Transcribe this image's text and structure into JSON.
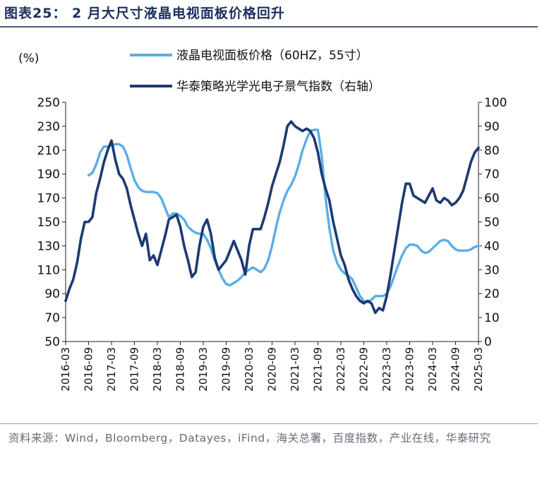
{
  "header": {
    "title": "图表25：  2 月大尺寸液晶电视面板价格回升"
  },
  "footer": {
    "source": "资料来源：Wind，Bloomberg，Datayes，iFind，海关总署，百度指数，产业在线，华泰研究"
  },
  "chart_data": {
    "type": "line",
    "ylabel_left": "(%)",
    "ylim_left": [
      50,
      250
    ],
    "yticks_left": [
      50,
      70,
      90,
      110,
      130,
      150,
      170,
      190,
      210,
      230,
      250
    ],
    "ylim_right": [
      0,
      100
    ],
    "yticks_right": [
      0,
      10,
      20,
      30,
      40,
      50,
      60,
      70,
      80,
      90,
      100
    ],
    "xlim": [
      "2016-03",
      "2025-03"
    ],
    "xticks": [
      "2016-03",
      "2016-09",
      "2017-03",
      "2017-09",
      "2018-03",
      "2018-09",
      "2019-03",
      "2019-09",
      "2020-03",
      "2020-09",
      "2021-03",
      "2021-09",
      "2022-03",
      "2022-09",
      "2023-03",
      "2023-09",
      "2024-03",
      "2024-09",
      "2025-03"
    ],
    "legend_position": "top-center",
    "series": [
      {
        "name": "液晶电视面板价格（60HZ，55寸）",
        "axis": "left",
        "color": "#5aaee6",
        "points": [
          [
            "2016-09",
            189
          ],
          [
            "2016-10",
            191
          ],
          [
            "2016-11",
            198
          ],
          [
            "2016-12",
            208
          ],
          [
            "2017-01",
            213
          ],
          [
            "2017-02",
            213
          ],
          [
            "2017-03",
            214
          ],
          [
            "2017-04",
            215
          ],
          [
            "2017-05",
            215
          ],
          [
            "2017-06",
            213
          ],
          [
            "2017-07",
            206
          ],
          [
            "2017-08",
            195
          ],
          [
            "2017-09",
            185
          ],
          [
            "2017-10",
            179
          ],
          [
            "2017-11",
            176
          ],
          [
            "2017-12",
            175
          ],
          [
            "2018-01",
            175
          ],
          [
            "2018-02",
            175
          ],
          [
            "2018-03",
            174
          ],
          [
            "2018-04",
            170
          ],
          [
            "2018-05",
            162
          ],
          [
            "2018-06",
            154
          ],
          [
            "2018-07",
            157
          ],
          [
            "2018-08",
            157
          ],
          [
            "2018-09",
            155
          ],
          [
            "2018-10",
            152
          ],
          [
            "2018-11",
            146
          ],
          [
            "2018-12",
            143
          ],
          [
            "2019-01",
            141
          ],
          [
            "2019-02",
            140
          ],
          [
            "2019-03",
            140
          ],
          [
            "2019-04",
            135
          ],
          [
            "2019-05",
            128
          ],
          [
            "2019-06",
            118
          ],
          [
            "2019-07",
            110
          ],
          [
            "2019-08",
            103
          ],
          [
            "2019-09",
            98
          ],
          [
            "2019-10",
            97
          ],
          [
            "2019-11",
            99
          ],
          [
            "2019-12",
            101
          ],
          [
            "2020-01",
            104
          ],
          [
            "2020-02",
            108
          ],
          [
            "2020-03",
            110
          ],
          [
            "2020-04",
            112
          ],
          [
            "2020-05",
            110
          ],
          [
            "2020-06",
            108
          ],
          [
            "2020-07",
            111
          ],
          [
            "2020-08",
            118
          ],
          [
            "2020-09",
            130
          ],
          [
            "2020-10",
            145
          ],
          [
            "2020-11",
            158
          ],
          [
            "2020-12",
            168
          ],
          [
            "2021-01",
            176
          ],
          [
            "2021-02",
            181
          ],
          [
            "2021-03",
            188
          ],
          [
            "2021-04",
            198
          ],
          [
            "2021-05",
            210
          ],
          [
            "2021-06",
            219
          ],
          [
            "2021-07",
            226
          ],
          [
            "2021-08",
            227
          ],
          [
            "2021-09",
            227
          ],
          [
            "2021-10",
            205
          ],
          [
            "2021-11",
            170
          ],
          [
            "2021-12",
            145
          ],
          [
            "2022-01",
            126
          ],
          [
            "2022-02",
            116
          ],
          [
            "2022-03",
            110
          ],
          [
            "2022-04",
            107
          ],
          [
            "2022-05",
            105
          ],
          [
            "2022-06",
            102
          ],
          [
            "2022-07",
            95
          ],
          [
            "2022-08",
            88
          ],
          [
            "2022-09",
            84
          ],
          [
            "2022-10",
            83
          ],
          [
            "2022-11",
            85
          ],
          [
            "2022-12",
            88
          ],
          [
            "2023-01",
            88
          ],
          [
            "2023-02",
            88
          ],
          [
            "2023-03",
            90
          ],
          [
            "2023-04",
            96
          ],
          [
            "2023-05",
            105
          ],
          [
            "2023-06",
            114
          ],
          [
            "2023-07",
            122
          ],
          [
            "2023-08",
            128
          ],
          [
            "2023-09",
            131
          ],
          [
            "2023-10",
            131
          ],
          [
            "2023-11",
            130
          ],
          [
            "2023-12",
            126
          ],
          [
            "2024-01",
            124
          ],
          [
            "2024-02",
            125
          ],
          [
            "2024-03",
            128
          ],
          [
            "2024-04",
            131
          ],
          [
            "2024-05",
            134
          ],
          [
            "2024-06",
            135
          ],
          [
            "2024-07",
            134
          ],
          [
            "2024-08",
            130
          ],
          [
            "2024-09",
            127
          ],
          [
            "2024-10",
            126
          ],
          [
            "2024-11",
            126
          ],
          [
            "2024-12",
            126
          ],
          [
            "2025-01",
            127
          ],
          [
            "2025-02",
            129
          ],
          [
            "2025-03",
            130
          ]
        ]
      },
      {
        "name": "华泰策略光学光电子景气指数（右轴）",
        "axis": "right",
        "color": "#1c3a72",
        "points": [
          [
            "2016-03",
            17
          ],
          [
            "2016-04",
            22
          ],
          [
            "2016-05",
            26
          ],
          [
            "2016-06",
            33
          ],
          [
            "2016-07",
            43
          ],
          [
            "2016-08",
            50
          ],
          [
            "2016-09",
            50
          ],
          [
            "2016-10",
            52
          ],
          [
            "2016-11",
            62
          ],
          [
            "2016-12",
            68
          ],
          [
            "2017-01",
            75
          ],
          [
            "2017-02",
            80
          ],
          [
            "2017-03",
            84
          ],
          [
            "2017-04",
            76
          ],
          [
            "2017-05",
            70
          ],
          [
            "2017-06",
            68
          ],
          [
            "2017-07",
            64
          ],
          [
            "2017-08",
            57
          ],
          [
            "2017-09",
            51
          ],
          [
            "2017-10",
            45
          ],
          [
            "2017-11",
            40
          ],
          [
            "2017-12",
            45
          ],
          [
            "2018-01",
            34
          ],
          [
            "2018-02",
            36
          ],
          [
            "2018-03",
            32
          ],
          [
            "2018-04",
            38
          ],
          [
            "2018-05",
            44
          ],
          [
            "2018-06",
            51
          ],
          [
            "2018-07",
            52
          ],
          [
            "2018-08",
            53
          ],
          [
            "2018-09",
            48
          ],
          [
            "2018-10",
            40
          ],
          [
            "2018-11",
            34
          ],
          [
            "2018-12",
            27
          ],
          [
            "2019-01",
            29
          ],
          [
            "2019-02",
            40
          ],
          [
            "2019-03",
            48
          ],
          [
            "2019-04",
            51
          ],
          [
            "2019-05",
            45
          ],
          [
            "2019-06",
            35
          ],
          [
            "2019-07",
            30
          ],
          [
            "2019-08",
            32
          ],
          [
            "2019-09",
            34
          ],
          [
            "2019-10",
            38
          ],
          [
            "2019-11",
            42
          ],
          [
            "2019-12",
            38
          ],
          [
            "2020-01",
            34
          ],
          [
            "2020-02",
            28
          ],
          [
            "2020-03",
            40
          ],
          [
            "2020-04",
            47
          ],
          [
            "2020-05",
            47
          ],
          [
            "2020-06",
            47
          ],
          [
            "2020-07",
            52
          ],
          [
            "2020-08",
            58
          ],
          [
            "2020-09",
            65
          ],
          [
            "2020-10",
            70
          ],
          [
            "2020-11",
            75
          ],
          [
            "2020-12",
            82
          ],
          [
            "2021-01",
            90
          ],
          [
            "2021-02",
            92
          ],
          [
            "2021-03",
            90
          ],
          [
            "2021-04",
            89
          ],
          [
            "2021-05",
            88
          ],
          [
            "2021-06",
            89
          ],
          [
            "2021-07",
            88
          ],
          [
            "2021-08",
            85
          ],
          [
            "2021-09",
            79
          ],
          [
            "2021-10",
            70
          ],
          [
            "2021-11",
            64
          ],
          [
            "2021-12",
            59
          ],
          [
            "2022-01",
            50
          ],
          [
            "2022-02",
            43
          ],
          [
            "2022-03",
            36
          ],
          [
            "2022-04",
            32
          ],
          [
            "2022-05",
            26
          ],
          [
            "2022-06",
            22
          ],
          [
            "2022-07",
            19
          ],
          [
            "2022-08",
            17
          ],
          [
            "2022-09",
            16
          ],
          [
            "2022-10",
            17
          ],
          [
            "2022-11",
            16
          ],
          [
            "2022-12",
            12
          ],
          [
            "2023-01",
            14
          ],
          [
            "2023-02",
            13
          ],
          [
            "2023-03",
            19
          ],
          [
            "2023-04",
            28
          ],
          [
            "2023-05",
            38
          ],
          [
            "2023-06",
            48
          ],
          [
            "2023-07",
            58
          ],
          [
            "2023-08",
            66
          ],
          [
            "2023-09",
            66
          ],
          [
            "2023-10",
            61
          ],
          [
            "2023-11",
            60
          ],
          [
            "2023-12",
            59
          ],
          [
            "2024-01",
            58
          ],
          [
            "2024-02",
            61
          ],
          [
            "2024-03",
            64
          ],
          [
            "2024-04",
            59
          ],
          [
            "2024-05",
            58
          ],
          [
            "2024-06",
            60
          ],
          [
            "2024-07",
            59
          ],
          [
            "2024-08",
            57
          ],
          [
            "2024-09",
            58
          ],
          [
            "2024-10",
            60
          ],
          [
            "2024-11",
            63
          ],
          [
            "2024-12",
            69
          ],
          [
            "2025-01",
            75
          ],
          [
            "2025-02",
            79
          ],
          [
            "2025-03",
            81
          ]
        ]
      }
    ]
  }
}
